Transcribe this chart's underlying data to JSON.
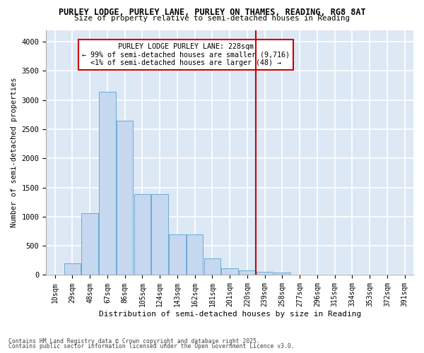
{
  "title1": "PURLEY LODGE, PURLEY LANE, PURLEY ON THAMES, READING, RG8 8AT",
  "title2": "Size of property relative to semi-detached houses in Reading",
  "xlabel": "Distribution of semi-detached houses by size in Reading",
  "ylabel": "Number of semi-detached properties",
  "categories": [
    "10sqm",
    "29sqm",
    "48sqm",
    "67sqm",
    "86sqm",
    "105sqm",
    "124sqm",
    "143sqm",
    "162sqm",
    "181sqm",
    "201sqm",
    "220sqm",
    "239sqm",
    "258sqm",
    "277sqm",
    "296sqm",
    "315sqm",
    "334sqm",
    "353sqm",
    "372sqm",
    "391sqm"
  ],
  "bar_heights": [
    10,
    200,
    1060,
    3140,
    2640,
    1380,
    1380,
    700,
    700,
    280,
    110,
    75,
    60,
    40,
    5,
    0,
    0,
    0,
    0,
    0,
    0
  ],
  "bar_color": "#c5d8f0",
  "bar_edge_color": "#6aaad4",
  "vline_color": "#cc0000",
  "annotation_title": "PURLEY LODGE PURLEY LANE: 228sqm",
  "annotation_line1": "← 99% of semi-detached houses are smaller (9,716)",
  "annotation_line2": "<1% of semi-detached houses are larger (48) →",
  "annotation_box_color": "#ffffff",
  "annotation_box_edge": "#cc0000",
  "ylim": [
    0,
    4200
  ],
  "yticks": [
    0,
    500,
    1000,
    1500,
    2000,
    2500,
    3000,
    3500,
    4000
  ],
  "footer1": "Contains HM Land Registry data © Crown copyright and database right 2025.",
  "footer2": "Contains public sector information licensed under the Open Government Licence v3.0.",
  "bg_color": "#ffffff",
  "plot_bg_color": "#dde8f5",
  "grid_color": "#ffffff"
}
